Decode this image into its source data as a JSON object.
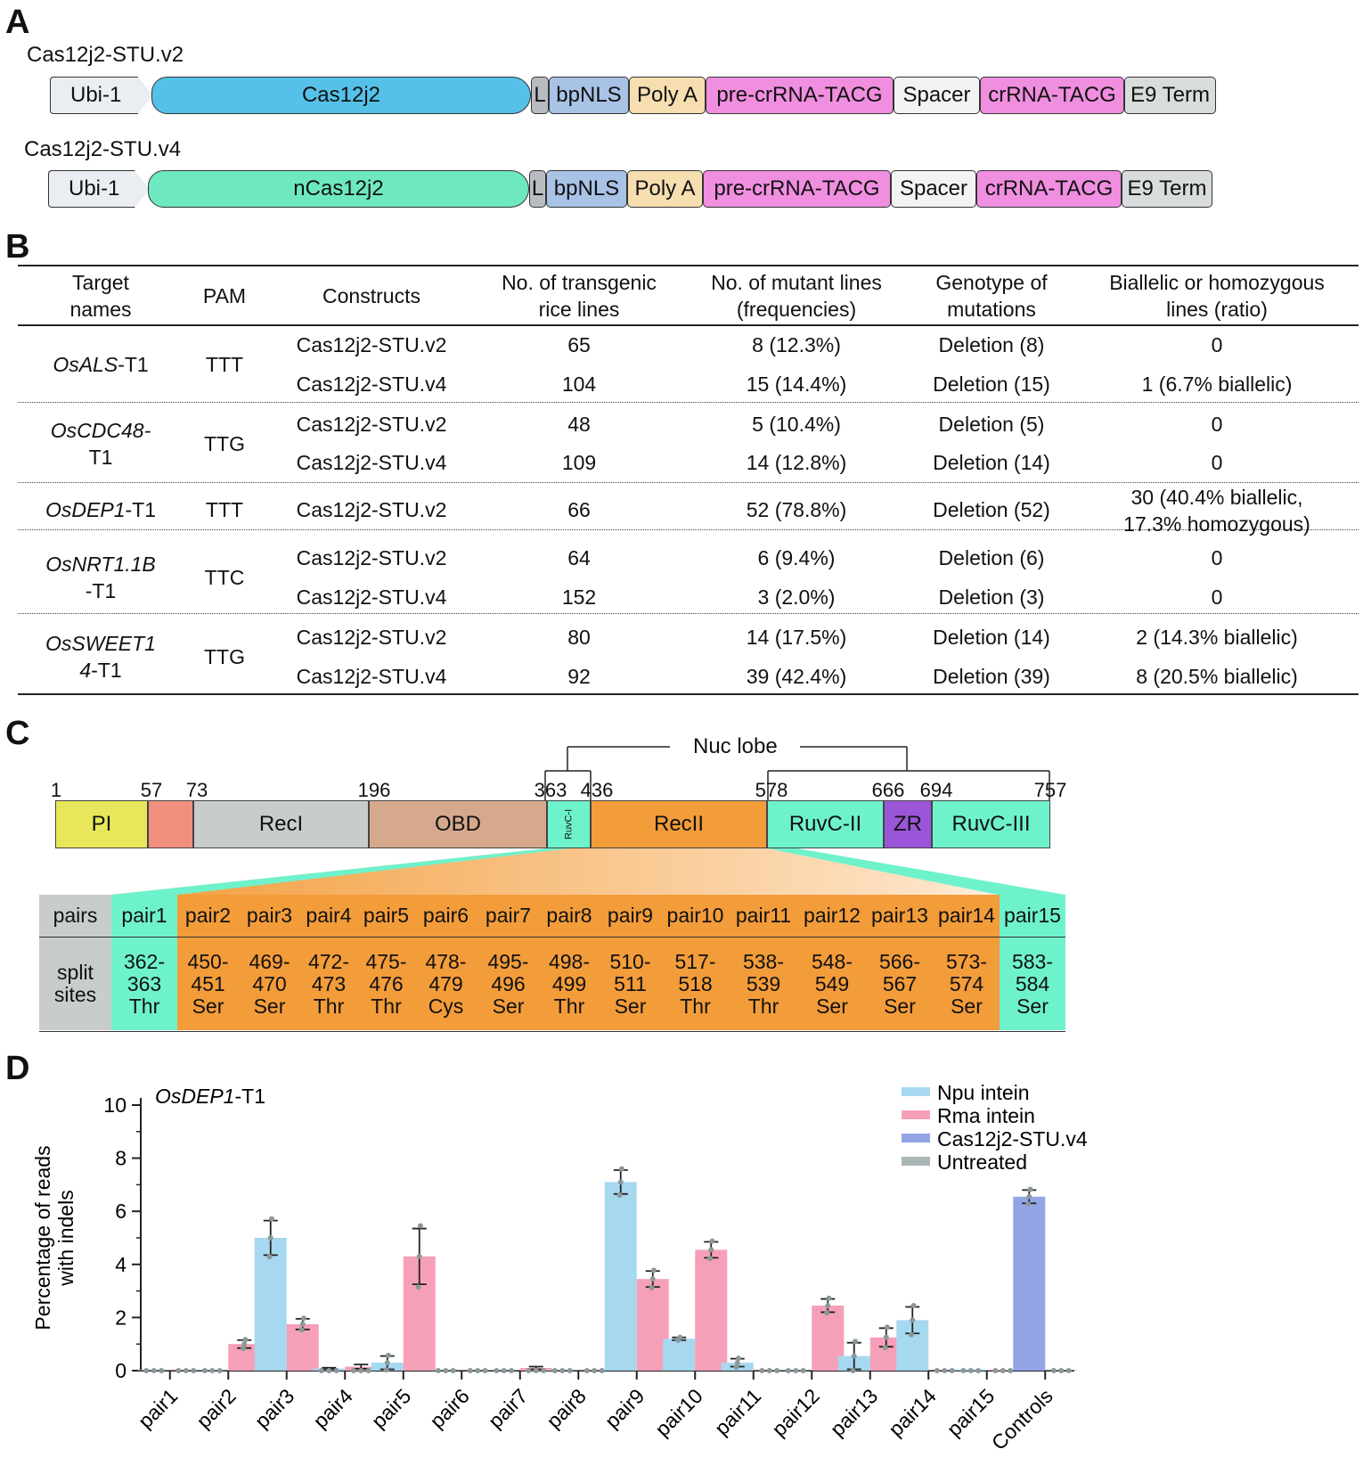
{
  "panels": {
    "a": "A",
    "b": "B",
    "c": "C",
    "d": "D"
  },
  "panel_a": {
    "construct1_name": "Cas12j2-STU.v2",
    "construct1": [
      "Ubi-1",
      "Cas12j2",
      "L",
      "bpNLS",
      "Poly A",
      "pre-crRNA-TACG",
      "Spacer",
      "crRNA-TACG",
      "E9 Term"
    ],
    "construct2_name": "Cas12j2-STU.v4",
    "construct2": [
      "Ubi-1",
      "nCas12j2",
      "L",
      "bpNLS",
      "Poly A",
      "pre-crRNA-TACG",
      "Spacer",
      "crRNA-TACG",
      "E9 Term"
    ],
    "colors": {
      "ubi": "#eaeef2",
      "cas": "#55c1e8",
      "ncas": "#6ee8c0",
      "L": "#b8bcc2",
      "nls": "#a9c3e6",
      "polya": "#f6deb0",
      "crrna": "#f08ee0",
      "spacer": "#f2f3f2",
      "term": "#d9dcdc"
    }
  },
  "panel_b": {
    "headers": [
      {
        "l1": "Target",
        "l2": "names"
      },
      {
        "l1": "PAM",
        "l2": ""
      },
      {
        "l1": "Constructs",
        "l2": ""
      },
      {
        "l1": "No. of transgenic",
        "l2": "rice lines"
      },
      {
        "l1": "No. of mutant lines",
        "l2": "(frequencies)"
      },
      {
        "l1": "Genotype of",
        "l2": "mutations"
      },
      {
        "l1": "Biallelic or homozygous",
        "l2": "lines (ratio)"
      }
    ],
    "groups": [
      {
        "target": "OsALS",
        "target_suffix": "-T1",
        "target_l2": "",
        "pam": "TTT",
        "rows": [
          {
            "construct": "Cas12j2-STU.v2",
            "lines": "65",
            "mutants": "8 (12.3%)",
            "genotype": "Deletion (8)",
            "ratio": "0"
          },
          {
            "construct": "Cas12j2-STU.v4",
            "lines": "104",
            "mutants": "15 (14.4%)",
            "genotype": "Deletion (15)",
            "ratio": "1 (6.7% biallelic)"
          }
        ]
      },
      {
        "target": "OsCDC48-",
        "target_suffix": "",
        "target_l2": "T1",
        "pam": "TTG",
        "rows": [
          {
            "construct": "Cas12j2-STU.v2",
            "lines": "48",
            "mutants": "5 (10.4%)",
            "genotype": "Deletion (5)",
            "ratio": "0"
          },
          {
            "construct": "Cas12j2-STU.v4",
            "lines": "109",
            "mutants": "14 (12.8%)",
            "genotype": "Deletion (14)",
            "ratio": "0"
          }
        ]
      },
      {
        "target": "OsDEP1",
        "target_suffix": "-T1",
        "target_l2": "",
        "pam": "TTT",
        "rows": [
          {
            "construct": "Cas12j2-STU.v2",
            "lines": "66",
            "mutants": "52 (78.8%)",
            "genotype": "Deletion (52)",
            "ratio": "30 (40.4% biallelic,",
            "ratio_l2": "17.3% homozygous)"
          }
        ]
      },
      {
        "target": "OsNRT1.1B",
        "target_suffix": "",
        "target_l2": "-T1",
        "pam": "TTC",
        "rows": [
          {
            "construct": "Cas12j2-STU.v2",
            "lines": "64",
            "mutants": "6 (9.4%)",
            "genotype": "Deletion (6)",
            "ratio": "0"
          },
          {
            "construct": "Cas12j2-STU.v4",
            "lines": "152",
            "mutants": "3 (2.0%)",
            "genotype": "Deletion (3)",
            "ratio": "0"
          }
        ]
      },
      {
        "target": "OsSWEET1",
        "target_suffix": "",
        "target_l2": "4",
        "target_l2_suffix": "-T1",
        "pam": "TTG",
        "rows": [
          {
            "construct": "Cas12j2-STU.v2",
            "lines": "80",
            "mutants": "14 (17.5%)",
            "genotype": "Deletion (14)",
            "ratio": "2 (14.3% biallelic)"
          },
          {
            "construct": "Cas12j2-STU.v4",
            "lines": "92",
            "mutants": "39 (42.4%)",
            "genotype": "Deletion (39)",
            "ratio": "8 (20.5% biallelic)"
          }
        ]
      }
    ]
  },
  "panel_c": {
    "nuc_lobe": "Nuc lobe",
    "residues": [
      "1",
      "57",
      "73",
      "196",
      "363",
      "436",
      "578",
      "666",
      "694",
      "757"
    ],
    "domains": [
      "PI",
      "",
      "RecI",
      "OBD",
      "RuvC-I",
      "RecII",
      "RuvC-II",
      "ZR",
      "RuvC-III"
    ],
    "domain_colors": [
      "#e8e65a",
      "#f0907e",
      "#c8cccb",
      "#d6a98c",
      "#6ef2cc",
      "#f39c3a",
      "#6ef2cc",
      "#9b55d8",
      "#6ef2cc"
    ],
    "pairs_header": "pairs",
    "split_header_l1": "split",
    "split_header_l2": "sites",
    "pairs": [
      {
        "name": "pair1",
        "a": "362-",
        "b": "363",
        "aa": "Thr"
      },
      {
        "name": "pair2",
        "a": "450-",
        "b": "451",
        "aa": "Ser"
      },
      {
        "name": "pair3",
        "a": "469-",
        "b": "470",
        "aa": "Ser"
      },
      {
        "name": "pair4",
        "a": "472-",
        "b": "473",
        "aa": "Thr"
      },
      {
        "name": "pair5",
        "a": "475-",
        "b": "476",
        "aa": "Thr"
      },
      {
        "name": "pair6",
        "a": "478-",
        "b": "479",
        "aa": "Cys"
      },
      {
        "name": "pair7",
        "a": "495-",
        "b": "496",
        "aa": "Ser"
      },
      {
        "name": "pair8",
        "a": "498-",
        "b": "499",
        "aa": "Thr"
      },
      {
        "name": "pair9",
        "a": "510-",
        "b": "511",
        "aa": "Ser"
      },
      {
        "name": "pair10",
        "a": "517-",
        "b": "518",
        "aa": "Thr"
      },
      {
        "name": "pair11",
        "a": "538-",
        "b": "539",
        "aa": "Thr"
      },
      {
        "name": "pair12",
        "a": "548-",
        "b": "549",
        "aa": "Ser"
      },
      {
        "name": "pair13",
        "a": "566-",
        "b": "567",
        "aa": "Ser"
      },
      {
        "name": "pair14",
        "a": "573-",
        "b": "574",
        "aa": "Ser"
      },
      {
        "name": "pair15",
        "a": "583-",
        "b": "584",
        "aa": "Ser"
      }
    ]
  },
  "chart_data": {
    "type": "bar",
    "title_italic": "OsDEP1",
    "title_suffix": "-T1",
    "ylabel_l1": "Percentage of reads",
    "ylabel_l2": "with indels",
    "ylim": [
      0,
      10
    ],
    "yticks": [
      "0",
      "2",
      "4",
      "6",
      "8",
      "10"
    ],
    "categories": [
      "pair1",
      "pair2",
      "pair3",
      "pair4",
      "pair5",
      "pair6",
      "pair7",
      "pair8",
      "pair9",
      "pair10",
      "pair11",
      "pair12",
      "pair13",
      "pair14",
      "pair15",
      "Controls"
    ],
    "series": [
      {
        "name": "Npu intein",
        "color": "#a6d8f0",
        "values": [
          0.02,
          0.02,
          5.0,
          0.08,
          0.3,
          0.02,
          0.02,
          0.02,
          7.1,
          1.2,
          0.3,
          0.02,
          0.55,
          1.9,
          0.05,
          null
        ],
        "errors": [
          0,
          0,
          0.65,
          0.03,
          0.25,
          0,
          0,
          0,
          0.45,
          0.05,
          0.15,
          0,
          0.5,
          0.5,
          0,
          0
        ]
      },
      {
        "name": "Rma intein",
        "color": "#f5a0b8",
        "values": [
          0.02,
          1.0,
          1.75,
          0.15,
          4.3,
          0.02,
          0.1,
          0.02,
          3.45,
          4.55,
          0.02,
          2.45,
          1.25,
          0.02,
          0.03,
          null
        ],
        "errors": [
          0,
          0.15,
          0.2,
          0.08,
          1.05,
          0,
          0.05,
          0,
          0.3,
          0.3,
          0,
          0.25,
          0.35,
          0,
          0,
          0
        ]
      },
      {
        "name": "Cas12j2-STU.v4",
        "color": "#93a5e6",
        "values": [
          null,
          null,
          null,
          null,
          null,
          null,
          null,
          null,
          null,
          null,
          null,
          null,
          null,
          null,
          null,
          6.55
        ]
      },
      {
        "name": "Untreated",
        "color": "#a9b6b6",
        "values": [
          null,
          null,
          null,
          null,
          null,
          null,
          null,
          null,
          null,
          null,
          null,
          null,
          null,
          null,
          null,
          0.02
        ]
      }
    ],
    "error_bars": [
      {
        "series": "Npu intein",
        "values": [
          0,
          0,
          0.65,
          0.03,
          0.25,
          0,
          0,
          0,
          0.45,
          0.05,
          0.15,
          0,
          0.5,
          0.5,
          0,
          0
        ]
      },
      {
        "series": "Rma intein",
        "values": [
          0,
          0.15,
          0.2,
          0.08,
          1.05,
          0,
          0.05,
          0,
          0.3,
          0.3,
          0,
          0.25,
          0.35,
          0,
          0,
          0
        ]
      },
      {
        "series": "Cas12j2-STU.v4",
        "values": [
          0,
          0,
          0,
          0,
          0,
          0,
          0,
          0,
          0,
          0,
          0,
          0,
          0,
          0,
          0,
          0.25
        ]
      }
    ],
    "legend": "top-right"
  }
}
